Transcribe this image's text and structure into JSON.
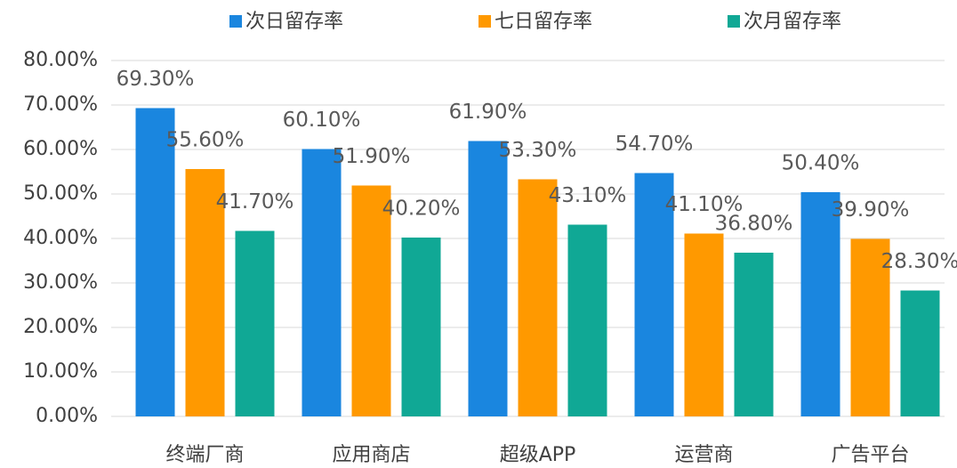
{
  "chart_data": {
    "type": "bar",
    "categories": [
      "终端厂商",
      "应用商店",
      "超级APP",
      "运营商",
      "广告平台"
    ],
    "series": [
      {
        "name": "次日留存率",
        "color": "#1a86df",
        "values": [
          69.3,
          60.1,
          61.9,
          54.7,
          50.4
        ],
        "value_labels": [
          "69.30%",
          "60.10%",
          "61.90%",
          "54.70%",
          "50.40%"
        ]
      },
      {
        "name": "七日留存率",
        "color": "#ff9900",
        "values": [
          55.6,
          51.9,
          53.3,
          41.1,
          39.9
        ],
        "value_labels": [
          "55.60%",
          "51.90%",
          "53.30%",
          "41.10%",
          "39.90%"
        ]
      },
      {
        "name": "次月留存率",
        "color": "#10a895",
        "values": [
          41.7,
          40.2,
          43.1,
          36.8,
          28.3
        ],
        "value_labels": [
          "41.70%",
          "40.20%",
          "43.10%",
          "36.80%",
          "28.30%"
        ]
      }
    ],
    "ylim": [
      0,
      80
    ],
    "yticks": [
      {
        "value": 0,
        "label": "0.00%"
      },
      {
        "value": 10,
        "label": "10.00%"
      },
      {
        "value": 20,
        "label": "20.00%"
      },
      {
        "value": 30,
        "label": "30.00%"
      },
      {
        "value": 40,
        "label": "40.00%"
      },
      {
        "value": 50,
        "label": "50.00%"
      },
      {
        "value": 60,
        "label": "60.00%"
      },
      {
        "value": 70,
        "label": "70.00%"
      },
      {
        "value": 80,
        "label": "80.00%"
      }
    ],
    "grid": true,
    "legend": "top"
  }
}
